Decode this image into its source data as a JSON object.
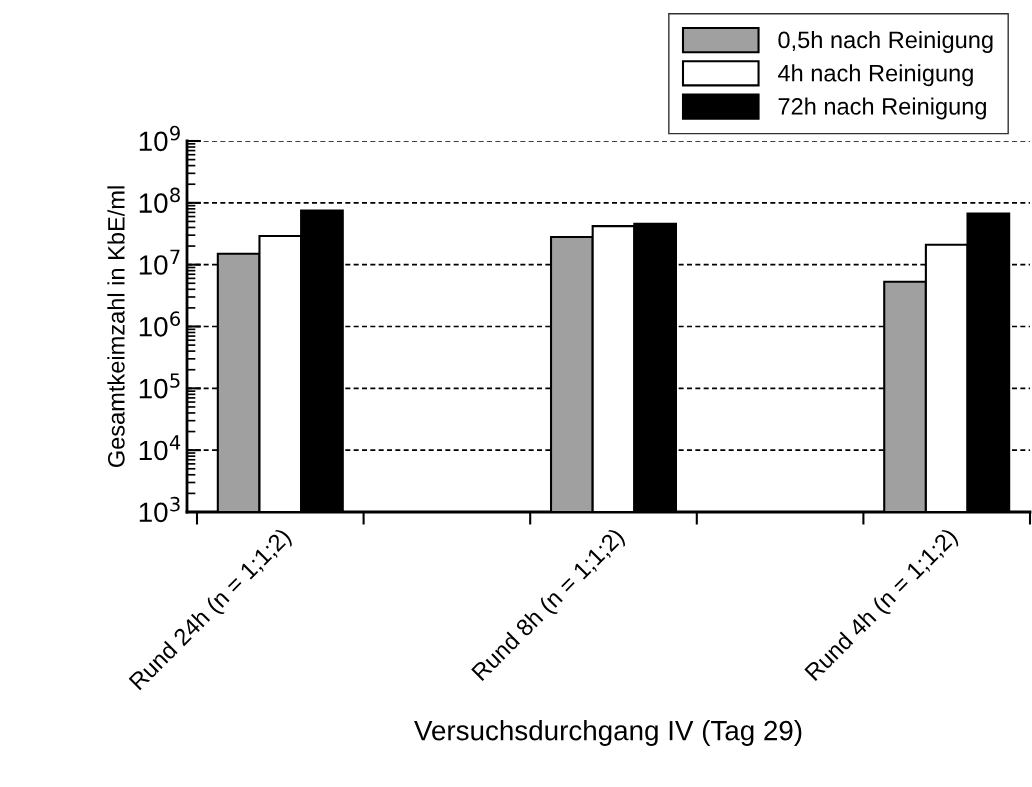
{
  "chart_data": {
    "type": "bar",
    "xlabel": "Versuchsdurchgang IV (Tag 29)",
    "ylabel": "Gesamtkeimzahl in KbE/ml",
    "categories": [
      "Rund 24h (n = 1;1;2)",
      "Rund 8h (n = 1;1;2)",
      "Rund 4h (n = 1;1;2)"
    ],
    "series": [
      {
        "name": "0,5h nach Reinigung",
        "color": "#a0a0a0",
        "values": [
          15000000,
          28000000,
          5300000
        ]
      },
      {
        "name": "4h nach Reinigung",
        "color": "#ffffff",
        "values": [
          29000000,
          42000000,
          21000000
        ]
      },
      {
        "name": "72h nach Reinigung",
        "color": "#000000",
        "values": [
          75000000,
          46000000,
          67000000
        ]
      }
    ],
    "log": true,
    "ylim": [
      1000,
      1000000000
    ],
    "yticks": [
      {
        "value": 1000,
        "label": "10$^{3}$"
      },
      {
        "value": 10000,
        "label": "10$^{4}$"
      },
      {
        "value": 100000,
        "label": "10$^{5}$"
      },
      {
        "value": 1000000,
        "label": "10$^{6}$"
      },
      {
        "value": 10000000,
        "label": "10$^{7}$"
      },
      {
        "value": 100000000,
        "label": "10$^{8}$"
      },
      {
        "value": 1000000000,
        "label": "10$^{9}$"
      }
    ],
    "grid": "y",
    "legend": "top right"
  }
}
